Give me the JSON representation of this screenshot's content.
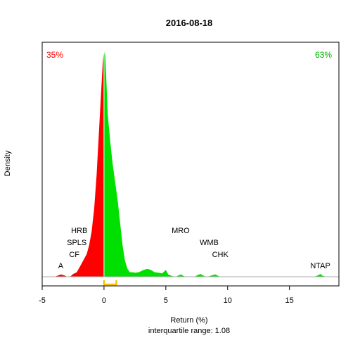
{
  "chart_data": {
    "type": "area",
    "title": "2016-08-18",
    "xlabel": "Return (%)",
    "ylabel": "Density",
    "subtitle": "interquartile range: 1.08",
    "xlim": [
      -5,
      19
    ],
    "x_ticks": [
      -5,
      0,
      5,
      10,
      15
    ],
    "grid": false,
    "pct_negative": "35%",
    "pct_positive": "63%",
    "colors": {
      "negative": "#ff0000",
      "positive": "#00e000",
      "iqr": "#ffc000",
      "neg_text": "#ff0000",
      "pos_text": "#00b000"
    },
    "iqr": [
      0.0,
      1.0
    ],
    "density": {
      "x": [
        -5,
        -4,
        -3.7,
        -3.5,
        -3.2,
        -3,
        -2.7,
        -2.5,
        -2.2,
        -2,
        -1.8,
        -1.6,
        -1.4,
        -1.2,
        -1,
        -0.8,
        -0.6,
        -0.4,
        -0.2,
        -0.1,
        0,
        0.1,
        0.2,
        0.3,
        0.5,
        0.7,
        0.9,
        1.1,
        1.3,
        1.5,
        1.7,
        1.9,
        2.1,
        2.3,
        2.5,
        2.8,
        3,
        3.2,
        3.5,
        3.8,
        4.1,
        4.4,
        4.7,
        5,
        5.2,
        5.5,
        5.8,
        6,
        6.2,
        6.5,
        6.8,
        7.3,
        7.6,
        7.8,
        8.1,
        8.4,
        8.7,
        9,
        9.3,
        9.6,
        10,
        12,
        14,
        16,
        17,
        17.3,
        17.5,
        17.7,
        18,
        19
      ],
      "y": [
        0.0,
        0.0,
        0.006,
        0.01,
        0.006,
        0.0,
        0.002,
        0.012,
        0.02,
        0.04,
        0.06,
        0.08,
        0.1,
        0.14,
        0.2,
        0.3,
        0.45,
        0.65,
        0.85,
        0.95,
        1.0,
        0.98,
        0.86,
        0.72,
        0.6,
        0.5,
        0.42,
        0.34,
        0.24,
        0.14,
        0.07,
        0.035,
        0.02,
        0.02,
        0.018,
        0.02,
        0.025,
        0.03,
        0.035,
        0.03,
        0.02,
        0.018,
        0.015,
        0.03,
        0.01,
        0.003,
        0.0,
        0.005,
        0.01,
        0.002,
        0.0,
        0.0,
        0.008,
        0.012,
        0.003,
        0.0,
        0.006,
        0.01,
        0.002,
        0.0,
        0.0,
        0.0,
        0.0,
        0.0,
        0.0,
        0.006,
        0.012,
        0.004,
        0.0,
        0.0
      ]
    },
    "annotations": [
      {
        "label": "HRB",
        "x": -2.0,
        "level": 4
      },
      {
        "label": "SPLS",
        "x": -2.2,
        "level": 3
      },
      {
        "label": "CF",
        "x": -2.4,
        "level": 2
      },
      {
        "label": "A",
        "x": -3.5,
        "level": 1
      },
      {
        "label": "MRO",
        "x": 6.2,
        "level": 4
      },
      {
        "label": "WMB",
        "x": 8.5,
        "level": 3
      },
      {
        "label": "CHK",
        "x": 9.4,
        "level": 2
      },
      {
        "label": "NTAP",
        "x": 17.5,
        "level": 1
      }
    ]
  }
}
